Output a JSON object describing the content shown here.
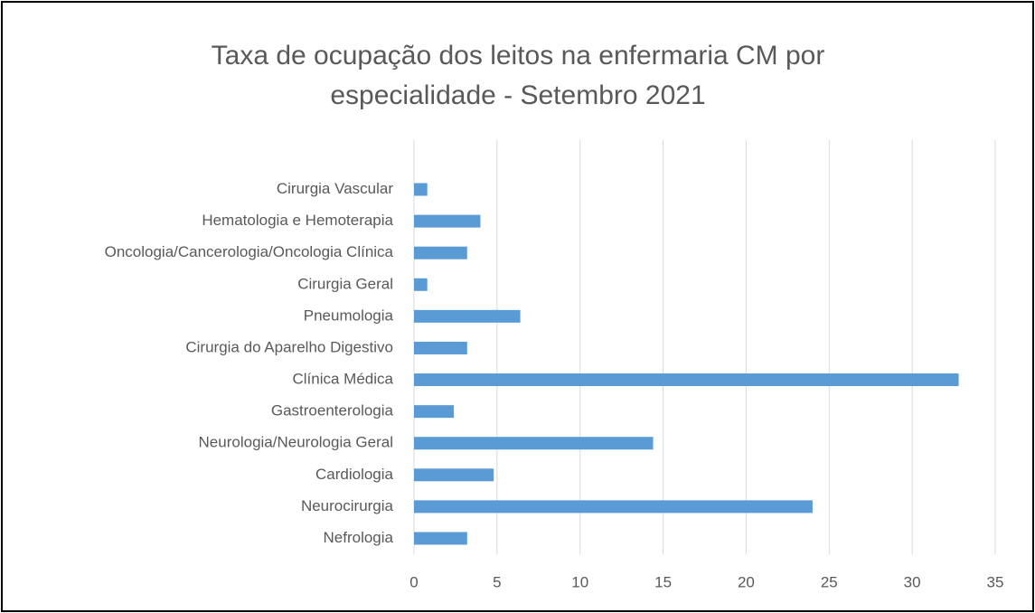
{
  "chart_data": {
    "type": "bar",
    "orientation": "horizontal",
    "title": "Taxa de ocupação dos leitos na enfermaria CM por especialidade - Setembro 2021",
    "categories": [
      "Cirurgia Vascular",
      "Hematologia e Hemoterapia",
      "Oncologia/Cancerologia/Oncologia Clínica",
      "Cirurgia Geral",
      "Pneumologia",
      "Cirurgia do Aparelho Digestivo",
      "Clínica Médica",
      "Gastroenterologia",
      "Neurologia/Neurologia Geral",
      "Cardiologia",
      "Neurocirurgia",
      "Nefrologia"
    ],
    "values": [
      0.8,
      4.0,
      3.2,
      0.8,
      6.4,
      3.2,
      32.8,
      2.4,
      14.4,
      4.8,
      24.0,
      3.2
    ],
    "color": "#5b9bd5",
    "xlim": [
      0,
      35
    ],
    "xticks": [
      0,
      5,
      10,
      15,
      20,
      25,
      30,
      35
    ],
    "grid": true
  }
}
